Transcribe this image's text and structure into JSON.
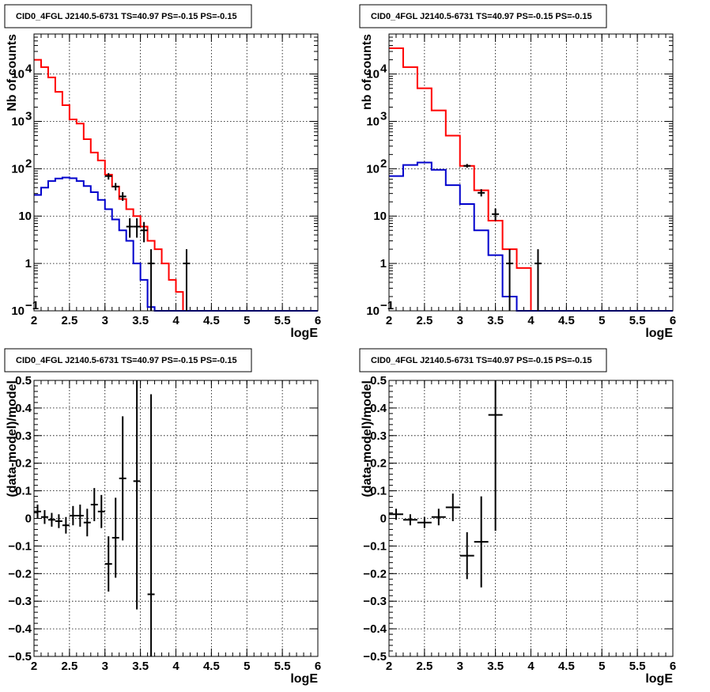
{
  "panels_title": "CID0_4FGL J2140.5-6731 TS=40.97 PS=-0.15 PS=-0.15",
  "colors": {
    "model": "#ff0000",
    "source": "#0000cc",
    "data": "#000000"
  },
  "chart_data": [
    {
      "type": "line",
      "title": "CID0_4FGL J2140.5-6731 TS=40.97 PS=-0.15 PS=-0.15",
      "xlabel": "logE",
      "ylabel": "Nb of counts",
      "xlim": [
        2,
        6
      ],
      "ylim": [
        0.1,
        70000
      ],
      "yscale": "log",
      "grid": true,
      "xticks": [
        "2",
        "2.5",
        "3",
        "3.5",
        "4",
        "4.5",
        "5",
        "5.5",
        "6"
      ],
      "yticks": [
        {
          "value": 0.1,
          "label": "10",
          "exp": "−1"
        },
        {
          "value": 1,
          "label": "1",
          "exp": ""
        },
        {
          "value": 10,
          "label": "10",
          "exp": ""
        },
        {
          "value": 100,
          "label": "10",
          "exp": "2"
        },
        {
          "value": 1000,
          "label": "10",
          "exp": "3"
        },
        {
          "value": 10000,
          "label": "10",
          "exp": "4"
        }
      ],
      "bin_edges": [
        2.0,
        2.1,
        2.2,
        2.3,
        2.4,
        2.5,
        2.6,
        2.7,
        2.8,
        2.9,
        3.0,
        3.1,
        3.2,
        3.3,
        3.4,
        3.5,
        3.6,
        3.7,
        3.8,
        3.9,
        4.0,
        4.1,
        4.2,
        4.3,
        4.4,
        4.5,
        4.6,
        4.7,
        4.8,
        4.9,
        5.0,
        5.1,
        5.2,
        5.3,
        5.4,
        5.5,
        5.6,
        5.7,
        5.8,
        5.9,
        6.0
      ],
      "series": [
        {
          "name": "model",
          "color": "#ff0000",
          "values": [
            20000,
            14000,
            8500,
            4200,
            2200,
            1100,
            900,
            420,
            220,
            150,
            75,
            42,
            23,
            14,
            10,
            6,
            3,
            2,
            1,
            0.45,
            0.25,
            0.1,
            0.1,
            0.1,
            0.1,
            0.1,
            0.1,
            0.1,
            0.1,
            0.1,
            0.1,
            0.1,
            0.1,
            0.1,
            0.1,
            0.1,
            0.1,
            0.1,
            0.1,
            0.1
          ]
        },
        {
          "name": "source",
          "color": "#0000cc",
          "values": [
            28,
            40,
            55,
            62,
            65,
            63,
            55,
            43,
            32,
            22,
            14,
            8.5,
            5.0,
            3.0,
            1.0,
            0.45,
            0.12,
            0.1,
            0.1,
            0.1,
            0.1,
            0.1,
            0.1,
            0.1,
            0.1,
            0.1,
            0.1,
            0.1,
            0.1,
            0.1,
            0.1,
            0.1,
            0.1,
            0.1,
            0.1,
            0.1,
            0.1,
            0.1,
            0.1,
            0.1
          ]
        }
      ],
      "points": [
        {
          "x": 3.05,
          "y": 70,
          "lo": 59,
          "hi": 81
        },
        {
          "x": 3.15,
          "y": 42,
          "lo": 35,
          "hi": 50
        },
        {
          "x": 3.25,
          "y": 26,
          "lo": 21,
          "hi": 32
        },
        {
          "x": 3.35,
          "y": 6,
          "lo": 3.5,
          "hi": 9
        },
        {
          "x": 3.45,
          "y": 6,
          "lo": 3.5,
          "hi": 9
        },
        {
          "x": 3.55,
          "y": 5,
          "lo": 2.8,
          "hi": 7.5
        },
        {
          "x": 3.65,
          "y": 1,
          "lo": 0.1,
          "hi": 2
        },
        {
          "x": 4.15,
          "y": 1,
          "lo": 0.1,
          "hi": 2
        }
      ]
    },
    {
      "type": "line",
      "title": "CID0_4FGL J2140.5-6731 TS=40.97 PS=-0.15 PS=-0.15",
      "xlabel": "logE",
      "ylabel": "nb of counts",
      "xlim": [
        2,
        6
      ],
      "ylim": [
        0.1,
        70000
      ],
      "yscale": "log",
      "grid": true,
      "xticks": [
        "2",
        "2.5",
        "3",
        "3.5",
        "4",
        "4.5",
        "5",
        "5.5",
        "6"
      ],
      "yticks": [
        {
          "value": 0.1,
          "label": "10",
          "exp": "−1"
        },
        {
          "value": 1,
          "label": "1",
          "exp": ""
        },
        {
          "value": 10,
          "label": "10",
          "exp": ""
        },
        {
          "value": 100,
          "label": "10",
          "exp": "2"
        },
        {
          "value": 1000,
          "label": "10",
          "exp": "3"
        },
        {
          "value": 10000,
          "label": "10",
          "exp": "4"
        }
      ],
      "bin_edges": [
        2.0,
        2.2,
        2.4,
        2.6,
        2.8,
        3.0,
        3.2,
        3.4,
        3.6,
        3.8,
        4.0,
        4.2,
        4.4,
        4.6,
        4.8,
        5.0,
        5.2,
        5.4,
        5.6,
        5.8,
        6.0
      ],
      "series": [
        {
          "name": "model",
          "color": "#ff0000",
          "values": [
            35000,
            14000,
            5000,
            1700,
            500,
            115,
            35,
            8,
            2,
            0.8,
            0.1,
            0.1,
            0.1,
            0.1,
            0.1,
            0.1,
            0.1,
            0.1,
            0.1,
            0.1
          ]
        },
        {
          "name": "source",
          "color": "#0000cc",
          "values": [
            70,
            120,
            135,
            95,
            45,
            18,
            5,
            1.5,
            0.2,
            0.1,
            0.1,
            0.1,
            0.1,
            0.1,
            0.1,
            0.1,
            0.1,
            0.1,
            0.1,
            0.1
          ]
        }
      ],
      "points": [
        {
          "x": 3.1,
          "y": 115,
          "lo": 105,
          "hi": 126
        },
        {
          "x": 3.3,
          "y": 31,
          "lo": 26,
          "hi": 37
        },
        {
          "x": 3.5,
          "y": 11,
          "lo": 8,
          "hi": 14.5
        },
        {
          "x": 3.7,
          "y": 1,
          "lo": 0.1,
          "hi": 2
        },
        {
          "x": 4.1,
          "y": 1,
          "lo": 0.1,
          "hi": 2
        }
      ]
    },
    {
      "type": "scatter",
      "title": "CID0_4FGL J2140.5-6731 TS=40.97 PS=-0.15 PS=-0.15",
      "xlabel": "logE",
      "ylabel": "(data-model)/model",
      "xlim": [
        2,
        6
      ],
      "ylim": [
        -0.5,
        0.5
      ],
      "yscale": "linear",
      "grid": true,
      "xticks": [
        "2",
        "2.5",
        "3",
        "3.5",
        "4",
        "4.5",
        "5",
        "5.5",
        "6"
      ],
      "yticks": [
        {
          "value": -0.5,
          "label": "−0.5"
        },
        {
          "value": -0.4,
          "label": "−0.4"
        },
        {
          "value": -0.3,
          "label": "−0.3"
        },
        {
          "value": -0.2,
          "label": "−0.2"
        },
        {
          "value": -0.1,
          "label": "−0.1"
        },
        {
          "value": 0,
          "label": "0"
        },
        {
          "value": 0.1,
          "label": "0.1"
        },
        {
          "value": 0.2,
          "label": "0.2"
        },
        {
          "value": 0.3,
          "label": "0.3"
        },
        {
          "value": 0.4,
          "label": "0.4"
        },
        {
          "value": 0.5,
          "label": "0.5"
        }
      ],
      "xhalf": 0.05,
      "points": [
        {
          "x": 2.05,
          "y": 0.025,
          "err": 0.025
        },
        {
          "x": 2.15,
          "y": 0.005,
          "err": 0.025
        },
        {
          "x": 2.25,
          "y": -0.005,
          "err": 0.025
        },
        {
          "x": 2.35,
          "y": -0.01,
          "err": 0.025
        },
        {
          "x": 2.45,
          "y": -0.025,
          "err": 0.03
        },
        {
          "x": 2.55,
          "y": 0.01,
          "err": 0.035
        },
        {
          "x": 2.65,
          "y": 0.01,
          "err": 0.04
        },
        {
          "x": 2.75,
          "y": -0.015,
          "err": 0.05
        },
        {
          "x": 2.85,
          "y": 0.05,
          "err": 0.06
        },
        {
          "x": 2.95,
          "y": 0.025,
          "err": 0.06
        },
        {
          "x": 3.05,
          "y": -0.165,
          "err": 0.1
        },
        {
          "x": 3.15,
          "y": -0.07,
          "err": 0.145
        },
        {
          "x": 3.25,
          "y": 0.145,
          "err": 0.225
        },
        {
          "x": 3.45,
          "y": 0.135,
          "err": 0.465
        },
        {
          "x": 3.65,
          "y": -0.275,
          "err": 0.725
        }
      ]
    },
    {
      "type": "scatter",
      "title": "CID0_4FGL J2140.5-6731 TS=40.97 PS=-0.15 PS=-0.15",
      "xlabel": "logE",
      "ylabel": "(data-model)/model",
      "xlim": [
        2,
        6
      ],
      "ylim": [
        -0.5,
        0.5
      ],
      "yscale": "linear",
      "grid": true,
      "xticks": [
        "2",
        "2.5",
        "3",
        "3.5",
        "4",
        "4.5",
        "5",
        "5.5",
        "6"
      ],
      "yticks": [
        {
          "value": -0.5,
          "label": "−0.5"
        },
        {
          "value": -0.4,
          "label": "−0.4"
        },
        {
          "value": -0.3,
          "label": "−0.3"
        },
        {
          "value": -0.2,
          "label": "−0.2"
        },
        {
          "value": -0.1,
          "label": "−0.1"
        },
        {
          "value": 0,
          "label": "0"
        },
        {
          "value": 0.1,
          "label": "0.1"
        },
        {
          "value": 0.2,
          "label": "0.2"
        },
        {
          "value": 0.3,
          "label": "0.3"
        },
        {
          "value": 0.4,
          "label": "0.4"
        },
        {
          "value": 0.5,
          "label": "0.5"
        }
      ],
      "xhalf": 0.1,
      "points": [
        {
          "x": 2.1,
          "y": 0.015,
          "err": 0.02
        },
        {
          "x": 2.3,
          "y": -0.005,
          "err": 0.02
        },
        {
          "x": 2.5,
          "y": -0.015,
          "err": 0.02
        },
        {
          "x": 2.7,
          "y": 0.005,
          "err": 0.03
        },
        {
          "x": 2.9,
          "y": 0.04,
          "err": 0.05
        },
        {
          "x": 3.1,
          "y": -0.135,
          "err": 0.085
        },
        {
          "x": 3.3,
          "y": -0.085,
          "err": 0.165
        },
        {
          "x": 3.5,
          "y": 0.375,
          "err": 0.42
        }
      ]
    }
  ]
}
